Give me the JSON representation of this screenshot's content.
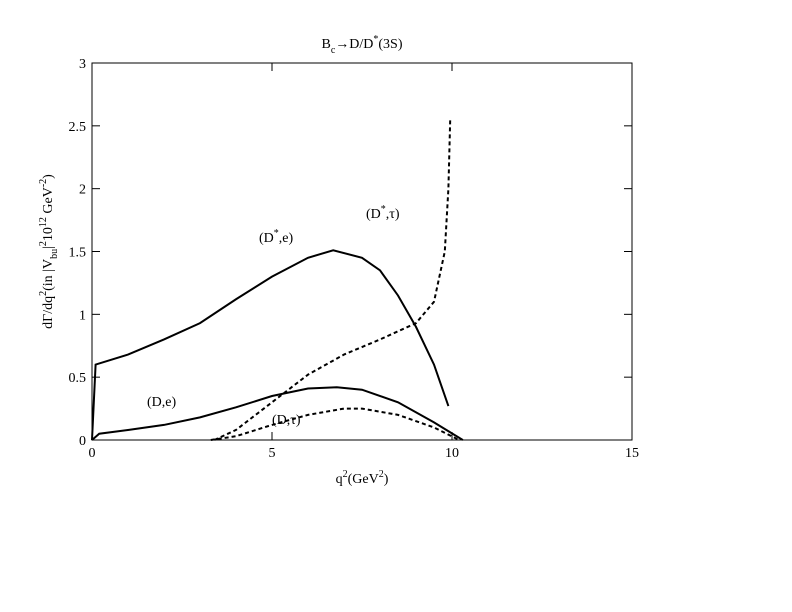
{
  "chart_data": {
    "type": "line",
    "title": [
      {
        "text": "B"
      },
      {
        "text": "c",
        "sub": true
      },
      {
        "text": "→D/D"
      },
      {
        "text": "*",
        "sup": true
      },
      {
        "text": "(3S)"
      }
    ],
    "x_label": [
      {
        "text": "q"
      },
      {
        "text": "2",
        "sup": true
      },
      {
        "text": "(GeV"
      },
      {
        "text": "2",
        "sup": true
      },
      {
        "text": ")"
      }
    ],
    "y_label": [
      {
        "text": "dΓ/dq"
      },
      {
        "text": "2",
        "sup": true
      },
      {
        "text": "(in |V"
      },
      {
        "text": "bu",
        "sub": true
      },
      {
        "text": "|"
      },
      {
        "text": "2",
        "sup": true
      },
      {
        "text": "10"
      },
      {
        "text": "12",
        "sup": true
      },
      {
        "text": " GeV"
      },
      {
        "text": "-2",
        "sup": true
      },
      {
        "text": ")"
      }
    ],
    "xlim": [
      0,
      15
    ],
    "ylim": [
      0,
      3
    ],
    "xticks": [
      0,
      5,
      10,
      15
    ],
    "yticks": [
      0,
      0.5,
      1,
      1.5,
      2,
      2.5,
      3
    ],
    "series": [
      {
        "color": "#000000",
        "linestyle": "solid",
        "x": [
          0,
          0.05,
          0.1,
          1,
          2,
          3,
          4,
          5,
          6,
          6.7,
          7.5,
          8,
          8.5,
          9,
          9.5,
          9.9
        ],
        "values": [
          0,
          0.3,
          0.6,
          0.68,
          0.8,
          0.93,
          1.12,
          1.3,
          1.45,
          1.51,
          1.45,
          1.35,
          1.15,
          0.9,
          0.6,
          0.27
        ]
      },
      {
        "color": "#000000",
        "linestyle": "solid",
        "x": [
          0,
          0.2,
          1,
          2,
          3,
          4,
          5,
          6,
          6.8,
          7.5,
          8.5,
          9.5,
          10.3
        ],
        "values": [
          0,
          0.05,
          0.08,
          0.12,
          0.18,
          0.26,
          0.35,
          0.41,
          0.42,
          0.4,
          0.3,
          0.14,
          0
        ]
      },
      {
        "color": "#000000",
        "linestyle": "dashed",
        "x": [
          3.4,
          4,
          5,
          6,
          7,
          8,
          9,
          9.5,
          9.8,
          9.9,
          9.95
        ],
        "values": [
          0,
          0.08,
          0.3,
          0.52,
          0.68,
          0.8,
          0.93,
          1.1,
          1.5,
          2,
          2.55
        ]
      },
      {
        "color": "#000000",
        "linestyle": "dashed",
        "x": [
          3.3,
          4,
          5,
          6,
          7,
          7.5,
          8.5,
          9.5,
          10.2
        ],
        "values": [
          0,
          0.03,
          0.12,
          0.2,
          0.25,
          0.25,
          0.2,
          0.1,
          0
        ]
      }
    ],
    "annotations": [
      [
        {
          "text": "(D"
        },
        {
          "text": "*",
          "sup": true
        },
        {
          "text": ",e)"
        }
      ],
      [
        {
          "text": "(D"
        },
        {
          "text": "*",
          "sup": true
        },
        {
          "text": ",τ)"
        }
      ],
      [
        {
          "text": "(D,e)"
        }
      ],
      [
        {
          "text": "(D,τ)"
        }
      ]
    ]
  }
}
